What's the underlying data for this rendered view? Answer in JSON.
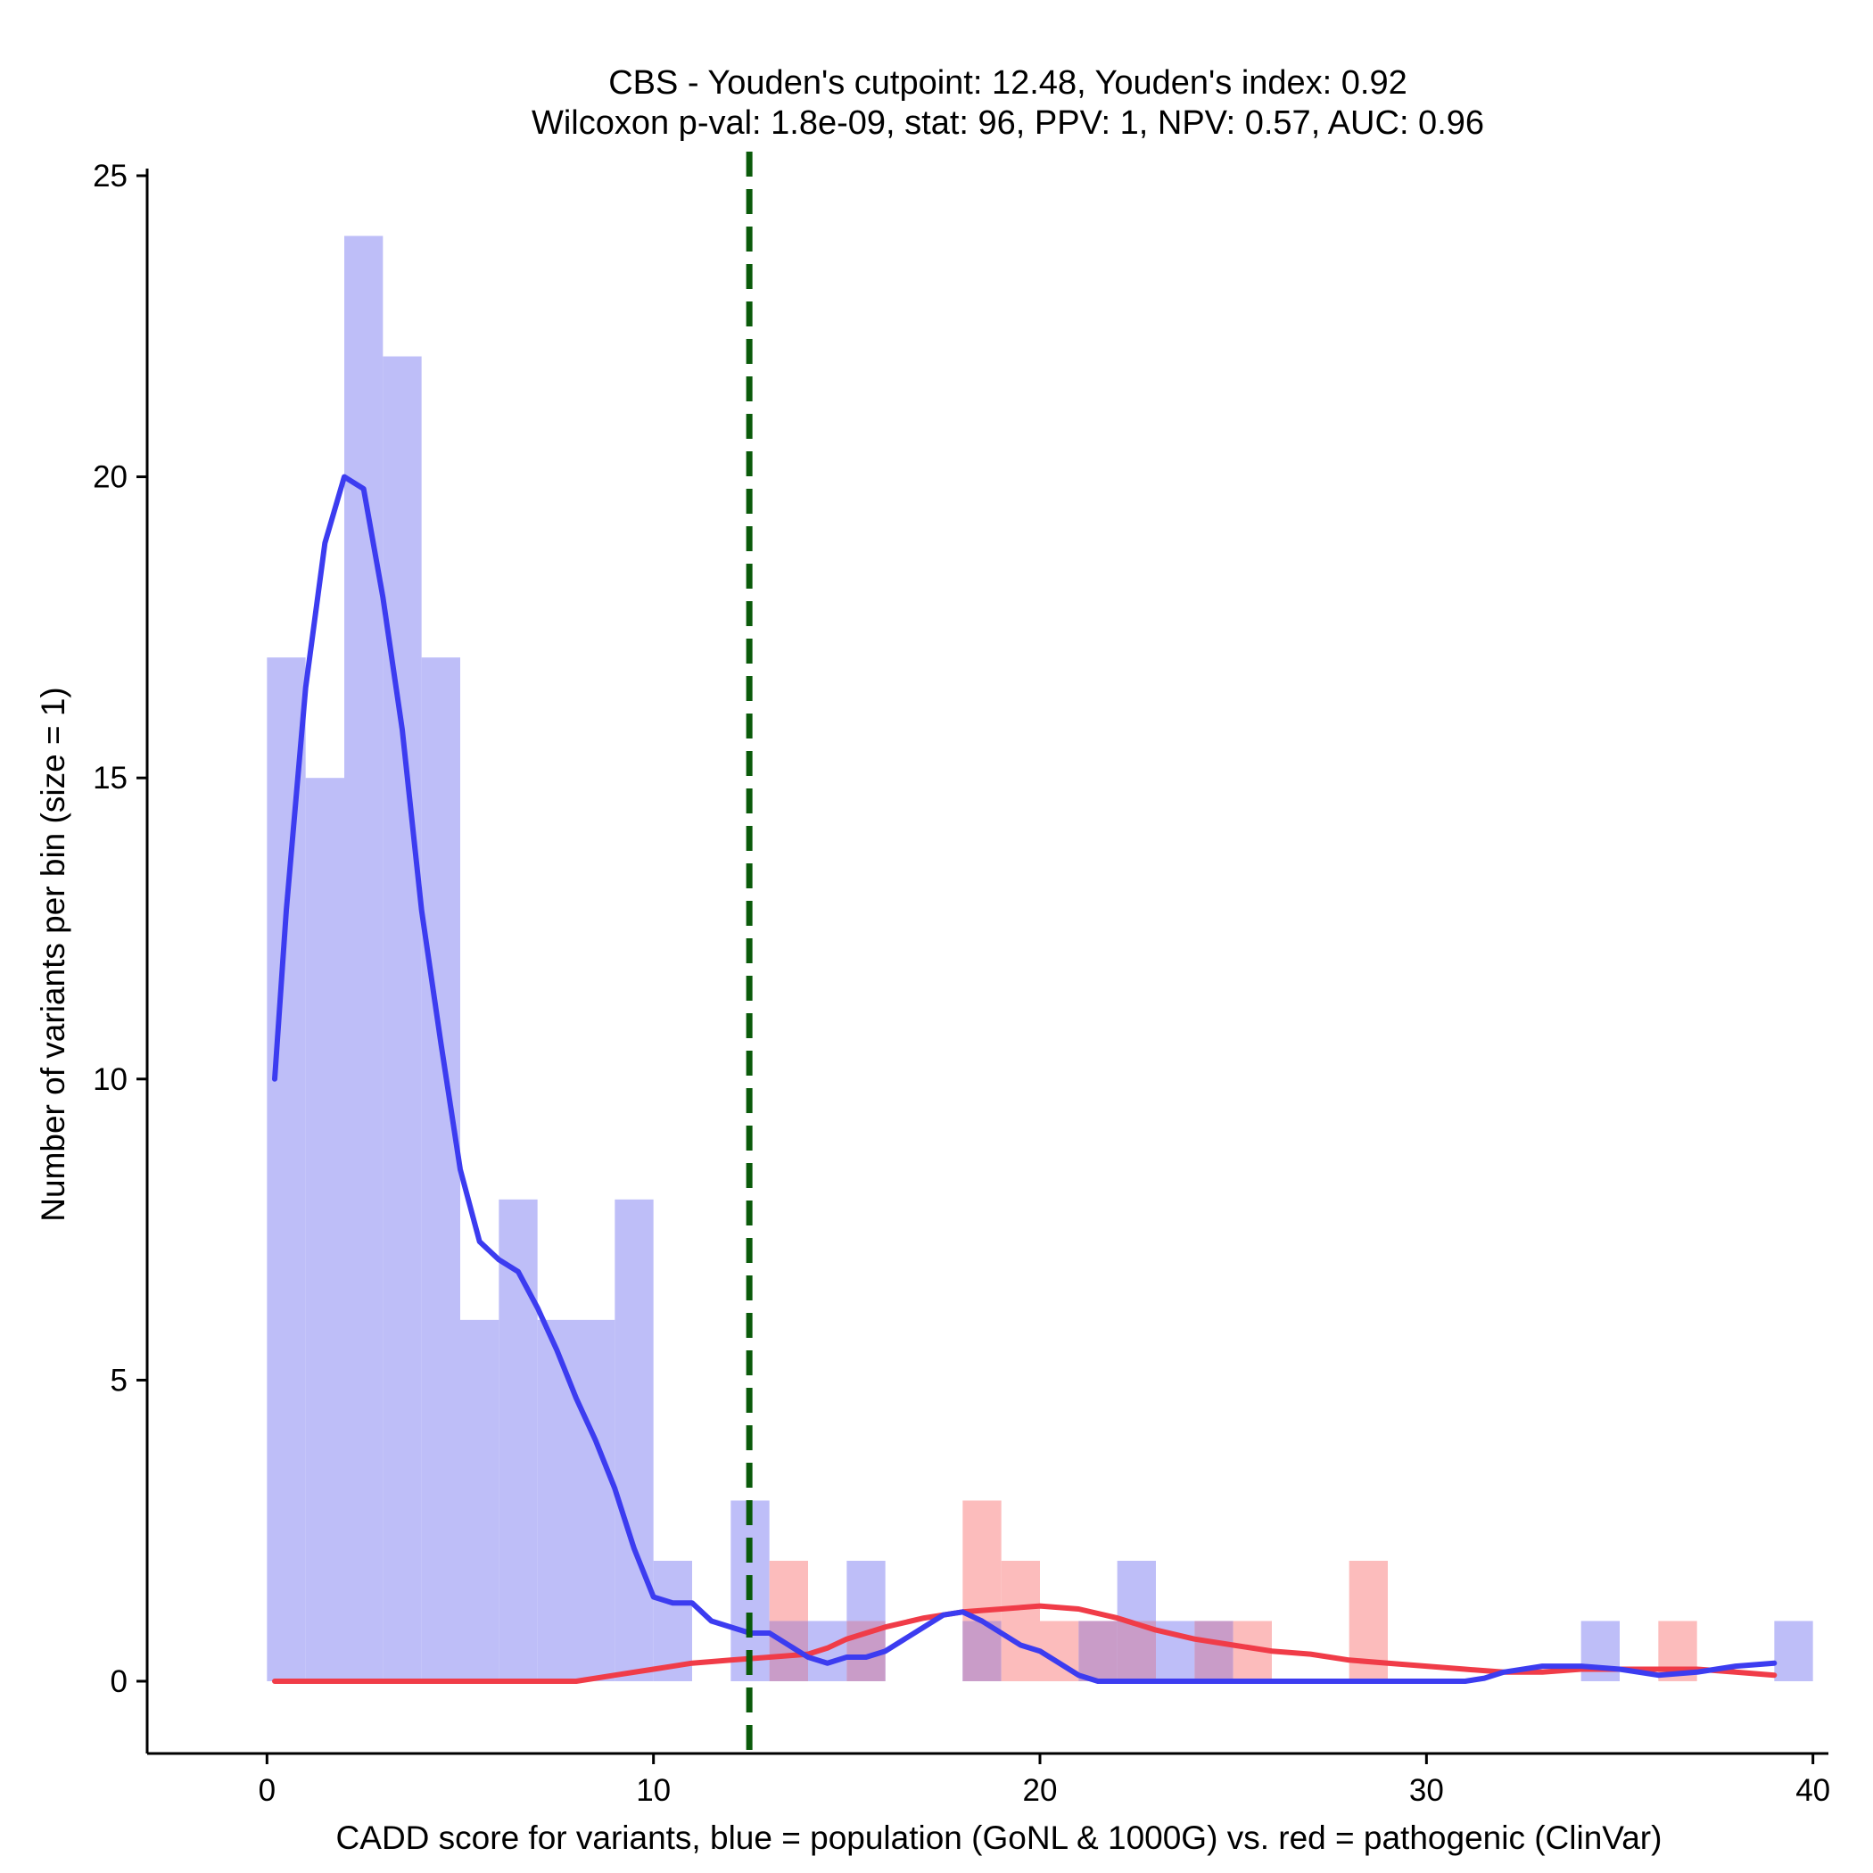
{
  "chart_data": {
    "type": "histogram-density",
    "title": {
      "line1": "CBS - Youden's cutpoint: 12.48, Youden's index: 0.92",
      "line2": "Wilcoxon p-val: 1.8e-09, stat: 96, PPV: 1, NPV: 0.57, AUC: 0.96"
    },
    "xlabel": "CADD score for variants, blue = population (GoNL & 1000G) vs. red = pathogenic (ClinVar)",
    "ylabel": "Number of variants per bin (size = 1)",
    "xlim": [
      -3.1,
      40.4
    ],
    "ylim": [
      -1.2,
      25.4
    ],
    "x_ticks": [
      0,
      10,
      20,
      30,
      40
    ],
    "y_ticks": [
      0,
      5,
      10,
      15,
      20,
      25
    ],
    "cutpoint": 12.48,
    "colors": {
      "population_bar": "#bebef8",
      "pathogenic_bar": "#fcbcbc",
      "overlap_bar": "#c99cc8",
      "population_line": "#3c3cf0",
      "pathogenic_line": "#f03c48",
      "cutpoint_line": "#0a5a0a",
      "axis": "#000000"
    },
    "series": [
      {
        "name": "population (GoNL & 1000G)",
        "color": "blue",
        "histogram": [
          {
            "x0": 0,
            "x1": 1,
            "count": 17
          },
          {
            "x0": 1,
            "x1": 2,
            "count": 15
          },
          {
            "x0": 2,
            "x1": 3,
            "count": 24
          },
          {
            "x0": 3,
            "x1": 4,
            "count": 22
          },
          {
            "x0": 4,
            "x1": 5,
            "count": 17
          },
          {
            "x0": 5,
            "x1": 6,
            "count": 6
          },
          {
            "x0": 6,
            "x1": 7,
            "count": 8
          },
          {
            "x0": 7,
            "x1": 8,
            "count": 6
          },
          {
            "x0": 8,
            "x1": 9,
            "count": 6
          },
          {
            "x0": 9,
            "x1": 10,
            "count": 8
          },
          {
            "x0": 10,
            "x1": 11,
            "count": 2
          },
          {
            "x0": 12,
            "x1": 13,
            "count": 3
          },
          {
            "x0": 13,
            "x1": 14,
            "count": 1
          },
          {
            "x0": 14,
            "x1": 15,
            "count": 1
          },
          {
            "x0": 15,
            "x1": 16,
            "count": 2
          },
          {
            "x0": 18,
            "x1": 19,
            "count": 1
          },
          {
            "x0": 21,
            "x1": 22,
            "count": 1
          },
          {
            "x0": 22,
            "x1": 23,
            "count": 2
          },
          {
            "x0": 23,
            "x1": 24,
            "count": 1
          },
          {
            "x0": 24,
            "x1": 25,
            "count": 1
          },
          {
            "x0": 34,
            "x1": 35,
            "count": 1
          },
          {
            "x0": 39,
            "x1": 40,
            "count": 1
          }
        ],
        "density": {
          "x": [
            0.2,
            0.5,
            1,
            1.5,
            2,
            2.5,
            3,
            3.5,
            4,
            4.5,
            5,
            5.5,
            6,
            6.5,
            7,
            7.5,
            8,
            8.5,
            9,
            9.5,
            10,
            10.5,
            11,
            11.5,
            12,
            12.5,
            13,
            13.5,
            14,
            14.5,
            15,
            15.5,
            16,
            16.5,
            17,
            17.5,
            18,
            18.5,
            19,
            19.5,
            20,
            20.5,
            21,
            21.5,
            22,
            22.5,
            23,
            23.5,
            24,
            24.5,
            25,
            25.5,
            26,
            27,
            28,
            29,
            30,
            31,
            31.5,
            32,
            33,
            34,
            35,
            36,
            37,
            38,
            39
          ],
          "y": [
            10,
            12.8,
            16.5,
            18.9,
            20.0,
            19.8,
            18.0,
            15.8,
            12.8,
            10.6,
            8.5,
            7.3,
            7.0,
            6.8,
            6.2,
            5.5,
            4.7,
            4.0,
            3.2,
            2.2,
            1.4,
            1.3,
            1.3,
            1.0,
            0.9,
            0.8,
            0.8,
            0.6,
            0.4,
            0.3,
            0.4,
            0.4,
            0.5,
            0.7,
            0.9,
            1.1,
            1.15,
            1.0,
            0.8,
            0.6,
            0.5,
            0.3,
            0.1,
            0.0,
            0.0,
            0.0,
            0.0,
            0.0,
            0.0,
            0.0,
            0.0,
            0.0,
            0.0,
            0.0,
            0.0,
            0.0,
            0.0,
            0.0,
            0.05,
            0.15,
            0.25,
            0.25,
            0.2,
            0.1,
            0.15,
            0.25,
            0.3
          ]
        }
      },
      {
        "name": "pathogenic (ClinVar)",
        "color": "red",
        "histogram": [
          {
            "x0": 13,
            "x1": 14,
            "count": 2
          },
          {
            "x0": 15,
            "x1": 16,
            "count": 1
          },
          {
            "x0": 18,
            "x1": 19,
            "count": 3
          },
          {
            "x0": 19,
            "x1": 20,
            "count": 2
          },
          {
            "x0": 20,
            "x1": 21,
            "count": 1
          },
          {
            "x0": 21,
            "x1": 22,
            "count": 1
          },
          {
            "x0": 22,
            "x1": 23,
            "count": 1
          },
          {
            "x0": 24,
            "x1": 25,
            "count": 1
          },
          {
            "x0": 25,
            "x1": 26,
            "count": 1
          },
          {
            "x0": 28,
            "x1": 29,
            "count": 2
          },
          {
            "x0": 36,
            "x1": 37,
            "count": 1
          }
        ],
        "density": {
          "x": [
            0.2,
            2,
            4,
            6,
            8,
            8.5,
            9,
            10,
            11,
            12,
            13,
            14,
            14.5,
            15,
            16,
            17,
            18,
            19,
            20,
            21,
            22,
            23,
            24,
            25,
            26,
            27,
            28,
            29,
            30,
            31,
            32,
            33,
            34,
            35,
            36,
            37,
            38,
            39
          ],
          "y": [
            0,
            0,
            0,
            0,
            0,
            0.05,
            0.1,
            0.2,
            0.3,
            0.35,
            0.4,
            0.45,
            0.55,
            0.7,
            0.9,
            1.05,
            1.15,
            1.2,
            1.25,
            1.2,
            1.05,
            0.85,
            0.7,
            0.6,
            0.5,
            0.45,
            0.35,
            0.3,
            0.25,
            0.2,
            0.15,
            0.15,
            0.2,
            0.2,
            0.2,
            0.2,
            0.15,
            0.1
          ]
        }
      }
    ]
  }
}
